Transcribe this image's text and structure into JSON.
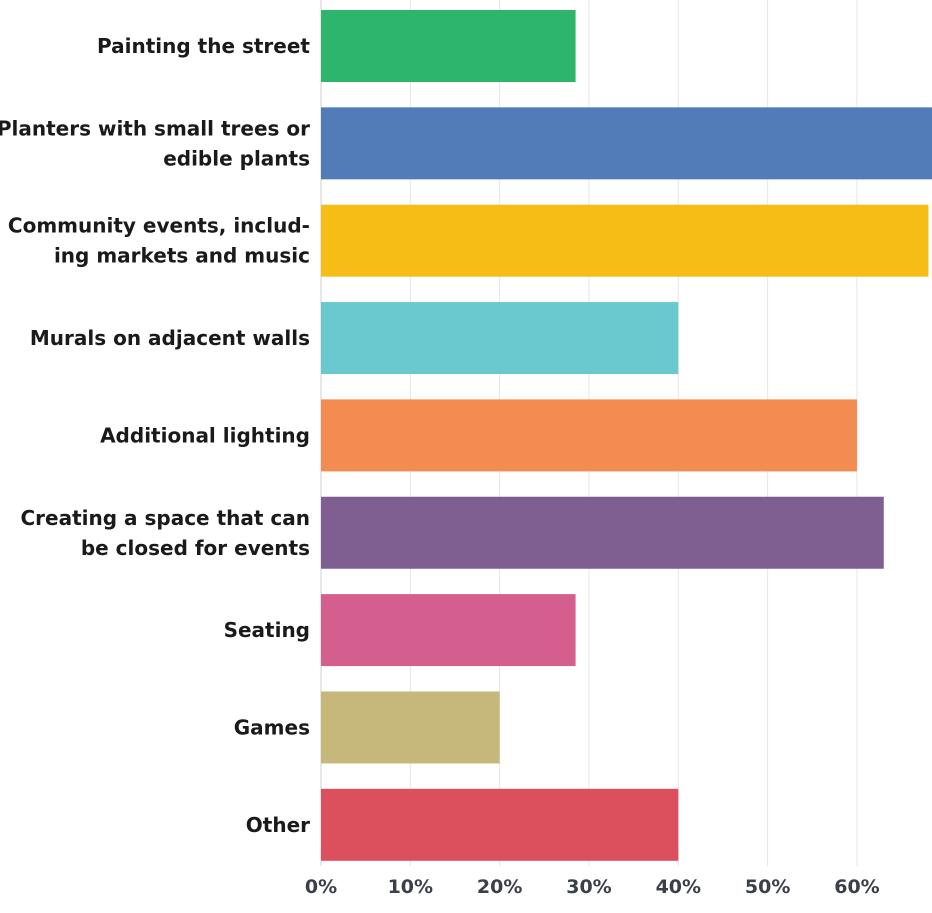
{
  "chart_data": {
    "type": "bar",
    "orientation": "horizontal",
    "categories": [
      "Painting the street",
      "Planters with small trees or edible plants",
      "Community events, including markets and music",
      "Murals on adjacent walls",
      "Additional lighting",
      "Creating a space that can be closed for events",
      "Seating",
      "Games",
      "Other"
    ],
    "category_label_lines": [
      [
        "Painting the street"
      ],
      [
        "Planters with small trees or",
        "edible plants"
      ],
      [
        "Community events, includ-",
        "ing markets and music"
      ],
      [
        "Murals on adjacent walls"
      ],
      [
        "Additional lighting"
      ],
      [
        "Creating a space that can",
        "be closed for events"
      ],
      [
        "Seating"
      ],
      [
        "Games"
      ],
      [
        "Other"
      ]
    ],
    "values": [
      28.5,
      69,
      68,
      40,
      60,
      63,
      28.5,
      20,
      40
    ],
    "colors": [
      "#2db66b",
      "#517cb8",
      "#f6bd16",
      "#6ac9cf",
      "#f48b51",
      "#7f5f91",
      "#d45f8e",
      "#c6b87a",
      "#dc4f5d"
    ],
    "xlim": [
      0,
      68.4
    ],
    "x_ticks": [
      0,
      10,
      20,
      30,
      40,
      50,
      60
    ],
    "x_tick_labels": [
      "0%",
      "10%",
      "20%",
      "30%",
      "40%",
      "50%",
      "60%"
    ],
    "grid": true,
    "title": "",
    "xlabel": "",
    "ylabel": ""
  }
}
